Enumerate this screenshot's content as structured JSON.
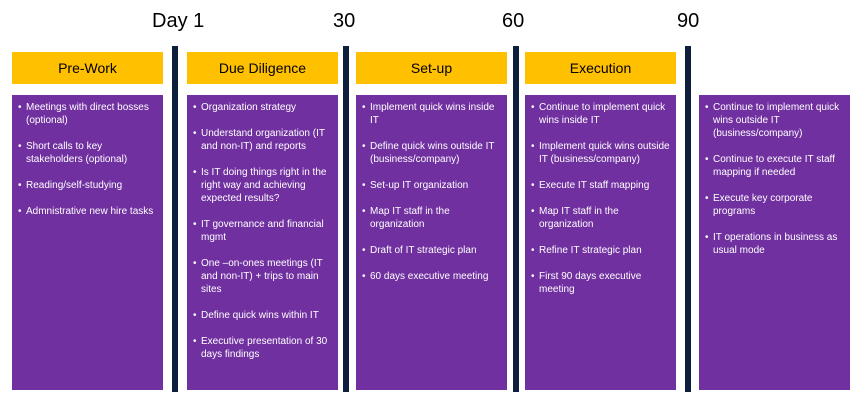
{
  "timeline": {
    "day_labels": [
      "Day 1",
      "30",
      "60",
      "90"
    ]
  },
  "phases": [
    {
      "title": "Pre-Work",
      "items": [
        "Meetings  with direct bosses (optional)",
        "Short calls to key stakeholders (optional)",
        "Reading/self-studying",
        "Admnistrative new hire tasks"
      ]
    },
    {
      "title": "Due Diligence",
      "items": [
        "Organization strategy",
        "Understand organization (IT and non-IT) and reports",
        "Is IT doing things right in the right way and achieving expected results?",
        "IT governance and financial mgmt",
        "One –on-ones meetings (IT and non-IT) + trips to main sites",
        " Define quick wins within IT",
        "Executive presentation of 30 days findings"
      ]
    },
    {
      "title": "Set-up",
      "items": [
        "Implement  quick wins inside IT",
        "Define quick wins outside IT  (business/company)",
        "Set-up IT organization",
        "Map IT staff in the organization",
        "Draft of IT strategic plan",
        "60 days executive meeting"
      ]
    },
    {
      "title": "Execution",
      "items": [
        "Continue to implement quick wins inside IT",
        "Implement  quick wins outside IT (business/company)",
        "Execute IT staff mapping",
        "Map IT staff in the organization",
        " Refine IT strategic plan",
        "First 90 days executive meeting"
      ]
    },
    {
      "title": "",
      "items": [
        "Continue to implement quick wins outside IT (business/company)",
        "Continue to execute IT staff mapping if needed",
        "Execute key corporate programs",
        "IT operations in business as usual mode"
      ]
    }
  ],
  "colors": {
    "header": "#ffc000",
    "box": "#7030a0",
    "divider": "#0d1f3c"
  }
}
